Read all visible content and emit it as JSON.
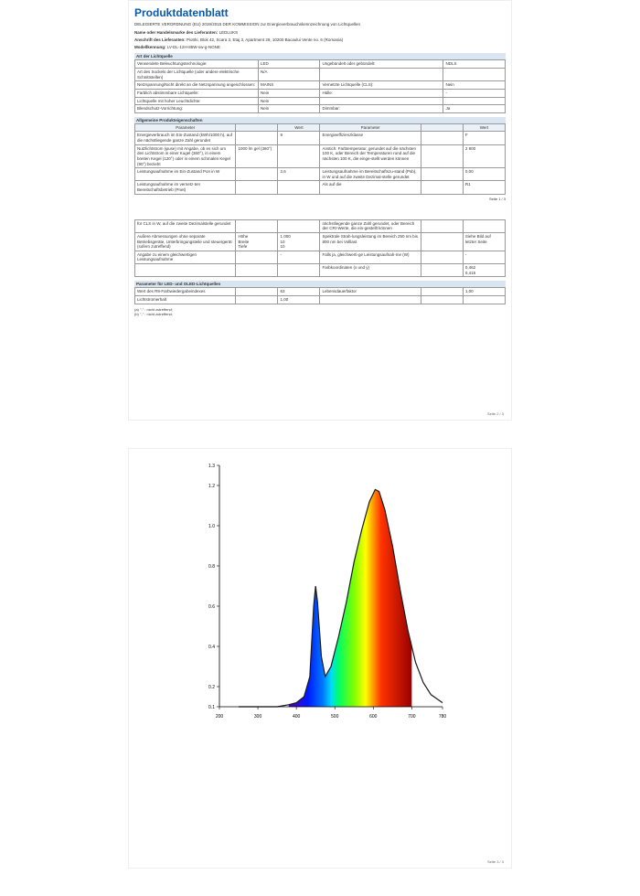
{
  "title": "Produktdatenblatt",
  "subtitle": "DELEGIERTE VERORDNUNG (EU) 2019/2015 DER KOMMISSION zur Energieverbrauchskennzeichnung von Lichtquellen",
  "meta": {
    "supplier_label": "Name oder Handelsmarke des Lieferanten:",
    "supplier_value": "LEDLUKS",
    "address_label": "Anschrift des Lieferanten:",
    "address_value": "Piotrki, Blok 42, Scara 3, Etaj 3, Apartment 29, 10200 Bacaului Vente no. 6 (Romania)",
    "model_label": "Modellkennung:",
    "model_value": "LV-DL-12H-85W-sw-g-NONE"
  },
  "section1_title": "Art der Lichtquelle",
  "table1": [
    [
      "Verwendete Beleuchtungstechnologie:",
      "LED",
      "Ungebündelt oder gebündelt:",
      "NDLS"
    ],
    [
      "Art des Sockels der Lichtquelle (oder andere elektrische Schnittstellen)",
      "N/A",
      "",
      ""
    ],
    [
      "Netzspannung/Nicht direkt an die Netzspannung angeschlossen:",
      "MAINS",
      "Vernetzte Lichtquelle (CLS):",
      "Nein"
    ],
    [
      "Farblich abstimmbare Lichtquelle:",
      "Nein",
      "Hülle:",
      "-"
    ],
    [
      "Lichtquelle mit hoher Leuchtdichte:",
      "Nein",
      "",
      ""
    ],
    [
      "Blendschutz-Vorrichtung:",
      "Nein",
      "Dimmbar:",
      "Ja"
    ]
  ],
  "section2_title": "Allgemeine Produkteigenschaften",
  "header_row": [
    "Parameter",
    "",
    "Wert",
    "Parameter",
    "",
    "Wert"
  ],
  "table2": [
    [
      "Energieverbrauch im Ein-Zustand (kWh/1000 h), auf die nächstliegende ganze Zahl gerundet",
      "",
      "9",
      "Energieeffizienzklasse",
      "",
      "F"
    ],
    [
      "Nutzlichtstrom (φuse) mit Angabe, ob es sich um den Lichtstrom in einer Kugel (360°), in einem breiten Kegel (120°) oder in einem schmalen Kegel (90°) bezieht",
      "1000 lm gel (360°)",
      "",
      "Anstich: Farbtemperatur, gerundet auf die nächsten 100 K, oder Bereich der Temperaturen rund auf die nächsten 100 K, die einge-stellt werden können",
      "",
      "2 800"
    ],
    [
      "Leistungsaufnahme im Ein-Zustand Pon in W",
      "",
      "2,6",
      "Leistungsaufnahme im Bereitschaftszu-stand (Psb), in W und auf die zweite Dezimal-stelle gerundet",
      "",
      "0,00"
    ],
    [
      "Leistungsaufnahme im vernetz-ten Bereitschaftsbetrieb (Pnet)",
      "",
      "",
      "Als auf die",
      "",
      "R1"
    ]
  ],
  "footnote_p1": "Seite 1 / 3",
  "table3": [
    [
      "für CLS in W, auf die zweite Dezimalstelle gerundet",
      "",
      "",
      "nächstliegende ganze Zahl gerundet, oder Bereich der CRI-Werte, die ein-gestellt können",
      "",
      ""
    ],
    [
      "Außere Abmessungen ohne separate Betriebsgeräte, Unterbringungsteile und steuergerät (sofern zutreffend)",
      "Höhe\nBreite\nTiefe",
      "1 000\n10\n10",
      "Spektrale Strah-lungsleistung im Bereich 250 nm bis 800 nm bei Volllast",
      "",
      "Siehe Bild auf letzter Seite"
    ],
    [
      "Angabe zu einem gleichwertigen Leistungsaufnahme",
      "",
      "-",
      "Falls ja, gleichwerti-ge Leistungsaufnah-me (W)",
      "",
      "-"
    ],
    [
      "",
      "",
      "",
      "Farbkoordinaten (x und y)",
      "",
      "0,462\n0,415"
    ]
  ],
  "section3_title": "Parameter für LED- und OLED-Lichtquellen",
  "table4": [
    [
      "Wert des R9-Farbwiedergabeindexes",
      "",
      "63",
      "Lebensdauerfaktor",
      "",
      "1,00"
    ],
    [
      "Lichtstromerhalt",
      "",
      "1,00",
      "",
      "",
      ""
    ]
  ],
  "footnotes_left": [
    "(a) \"-\" : nicht zutreffend;",
    "(b) \"-\" : nicht zutreffend;"
  ],
  "footnote_p2": "Seite 2 / 3",
  "chart": {
    "x_min": 200,
    "x_max": 780,
    "y_min": 0.1,
    "y_max": 1.3,
    "x_ticks": [
      200,
      300,
      400,
      500,
      600,
      700,
      780
    ],
    "y_ticks": [
      0.1,
      0.2,
      0.4,
      0.6,
      0.8,
      1.0,
      1.2,
      1.3
    ],
    "background": "#ffffff",
    "curve_color": "#1a1a1a",
    "curve": [
      [
        250,
        0.1
      ],
      [
        350,
        0.1
      ],
      [
        380,
        0.11
      ],
      [
        400,
        0.12
      ],
      [
        420,
        0.15
      ],
      [
        435,
        0.25
      ],
      [
        445,
        0.6
      ],
      [
        450,
        0.7
      ],
      [
        455,
        0.62
      ],
      [
        465,
        0.35
      ],
      [
        475,
        0.25
      ],
      [
        490,
        0.3
      ],
      [
        510,
        0.45
      ],
      [
        530,
        0.62
      ],
      [
        550,
        0.82
      ],
      [
        570,
        0.98
      ],
      [
        590,
        1.12
      ],
      [
        605,
        1.18
      ],
      [
        615,
        1.17
      ],
      [
        630,
        1.08
      ],
      [
        650,
        0.9
      ],
      [
        670,
        0.68
      ],
      [
        690,
        0.48
      ],
      [
        710,
        0.32
      ],
      [
        730,
        0.22
      ],
      [
        750,
        0.16
      ],
      [
        780,
        0.12
      ]
    ],
    "spectrum_stops": [
      {
        "x": 380,
        "c": "#5b00a8"
      },
      {
        "x": 430,
        "c": "#0019ff"
      },
      {
        "x": 470,
        "c": "#007bff"
      },
      {
        "x": 490,
        "c": "#00d9ff"
      },
      {
        "x": 510,
        "c": "#00ff66"
      },
      {
        "x": 550,
        "c": "#7fff00"
      },
      {
        "x": 580,
        "c": "#ffff00"
      },
      {
        "x": 600,
        "c": "#ff9900"
      },
      {
        "x": 620,
        "c": "#ff3300"
      },
      {
        "x": 700,
        "c": "#990000"
      }
    ]
  },
  "footnote_p3": "Seite 3 / 3"
}
